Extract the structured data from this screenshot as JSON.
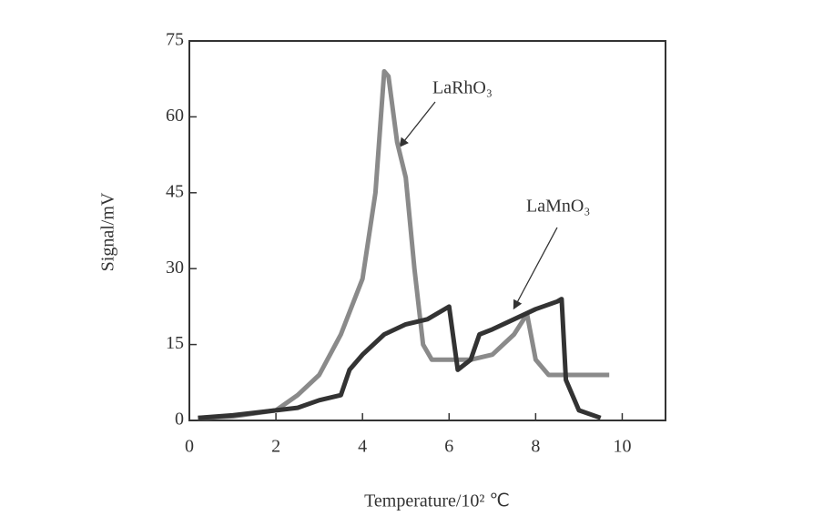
{
  "chart_data": {
    "type": "line",
    "x_label": "Temperature/10² ℃",
    "y_label": "Signal/mV",
    "xlim": [
      0,
      11
    ],
    "xticks": [
      0,
      2,
      4,
      6,
      8,
      10
    ],
    "ylim": [
      0,
      75
    ],
    "yticks": [
      0,
      15,
      30,
      45,
      60,
      75
    ],
    "series": [
      {
        "name": "LaRhO₃",
        "color": "#8a8a8a",
        "x": [
          0.2,
          1,
          2,
          2.5,
          3,
          3.5,
          4,
          4.3,
          4.5,
          4.6,
          4.8,
          5,
          5.2,
          5.4,
          5.6,
          6,
          6.5,
          7,
          7.5,
          7.8,
          8,
          8.3,
          9,
          9.7
        ],
        "values": [
          0.5,
          0.8,
          2,
          5,
          9,
          17,
          28,
          45,
          69,
          68,
          55,
          48,
          30,
          15,
          12,
          12,
          12,
          13,
          17,
          21,
          12,
          9,
          9,
          9
        ]
      },
      {
        "name": "LaMnO₃",
        "color": "#333333",
        "x": [
          0.2,
          1,
          2,
          2.5,
          3,
          3.5,
          3.7,
          4,
          4.5,
          5,
          5.5,
          6,
          6.2,
          6.5,
          6.7,
          7,
          7.5,
          8,
          8.5,
          8.6,
          8.7,
          9,
          9.5
        ],
        "values": [
          0.5,
          1,
          2,
          2.5,
          4,
          5,
          10,
          13,
          17,
          19,
          20,
          22.5,
          10,
          12,
          17,
          18,
          20,
          22,
          23.5,
          24,
          8,
          2,
          0.5
        ]
      }
    ]
  }
}
